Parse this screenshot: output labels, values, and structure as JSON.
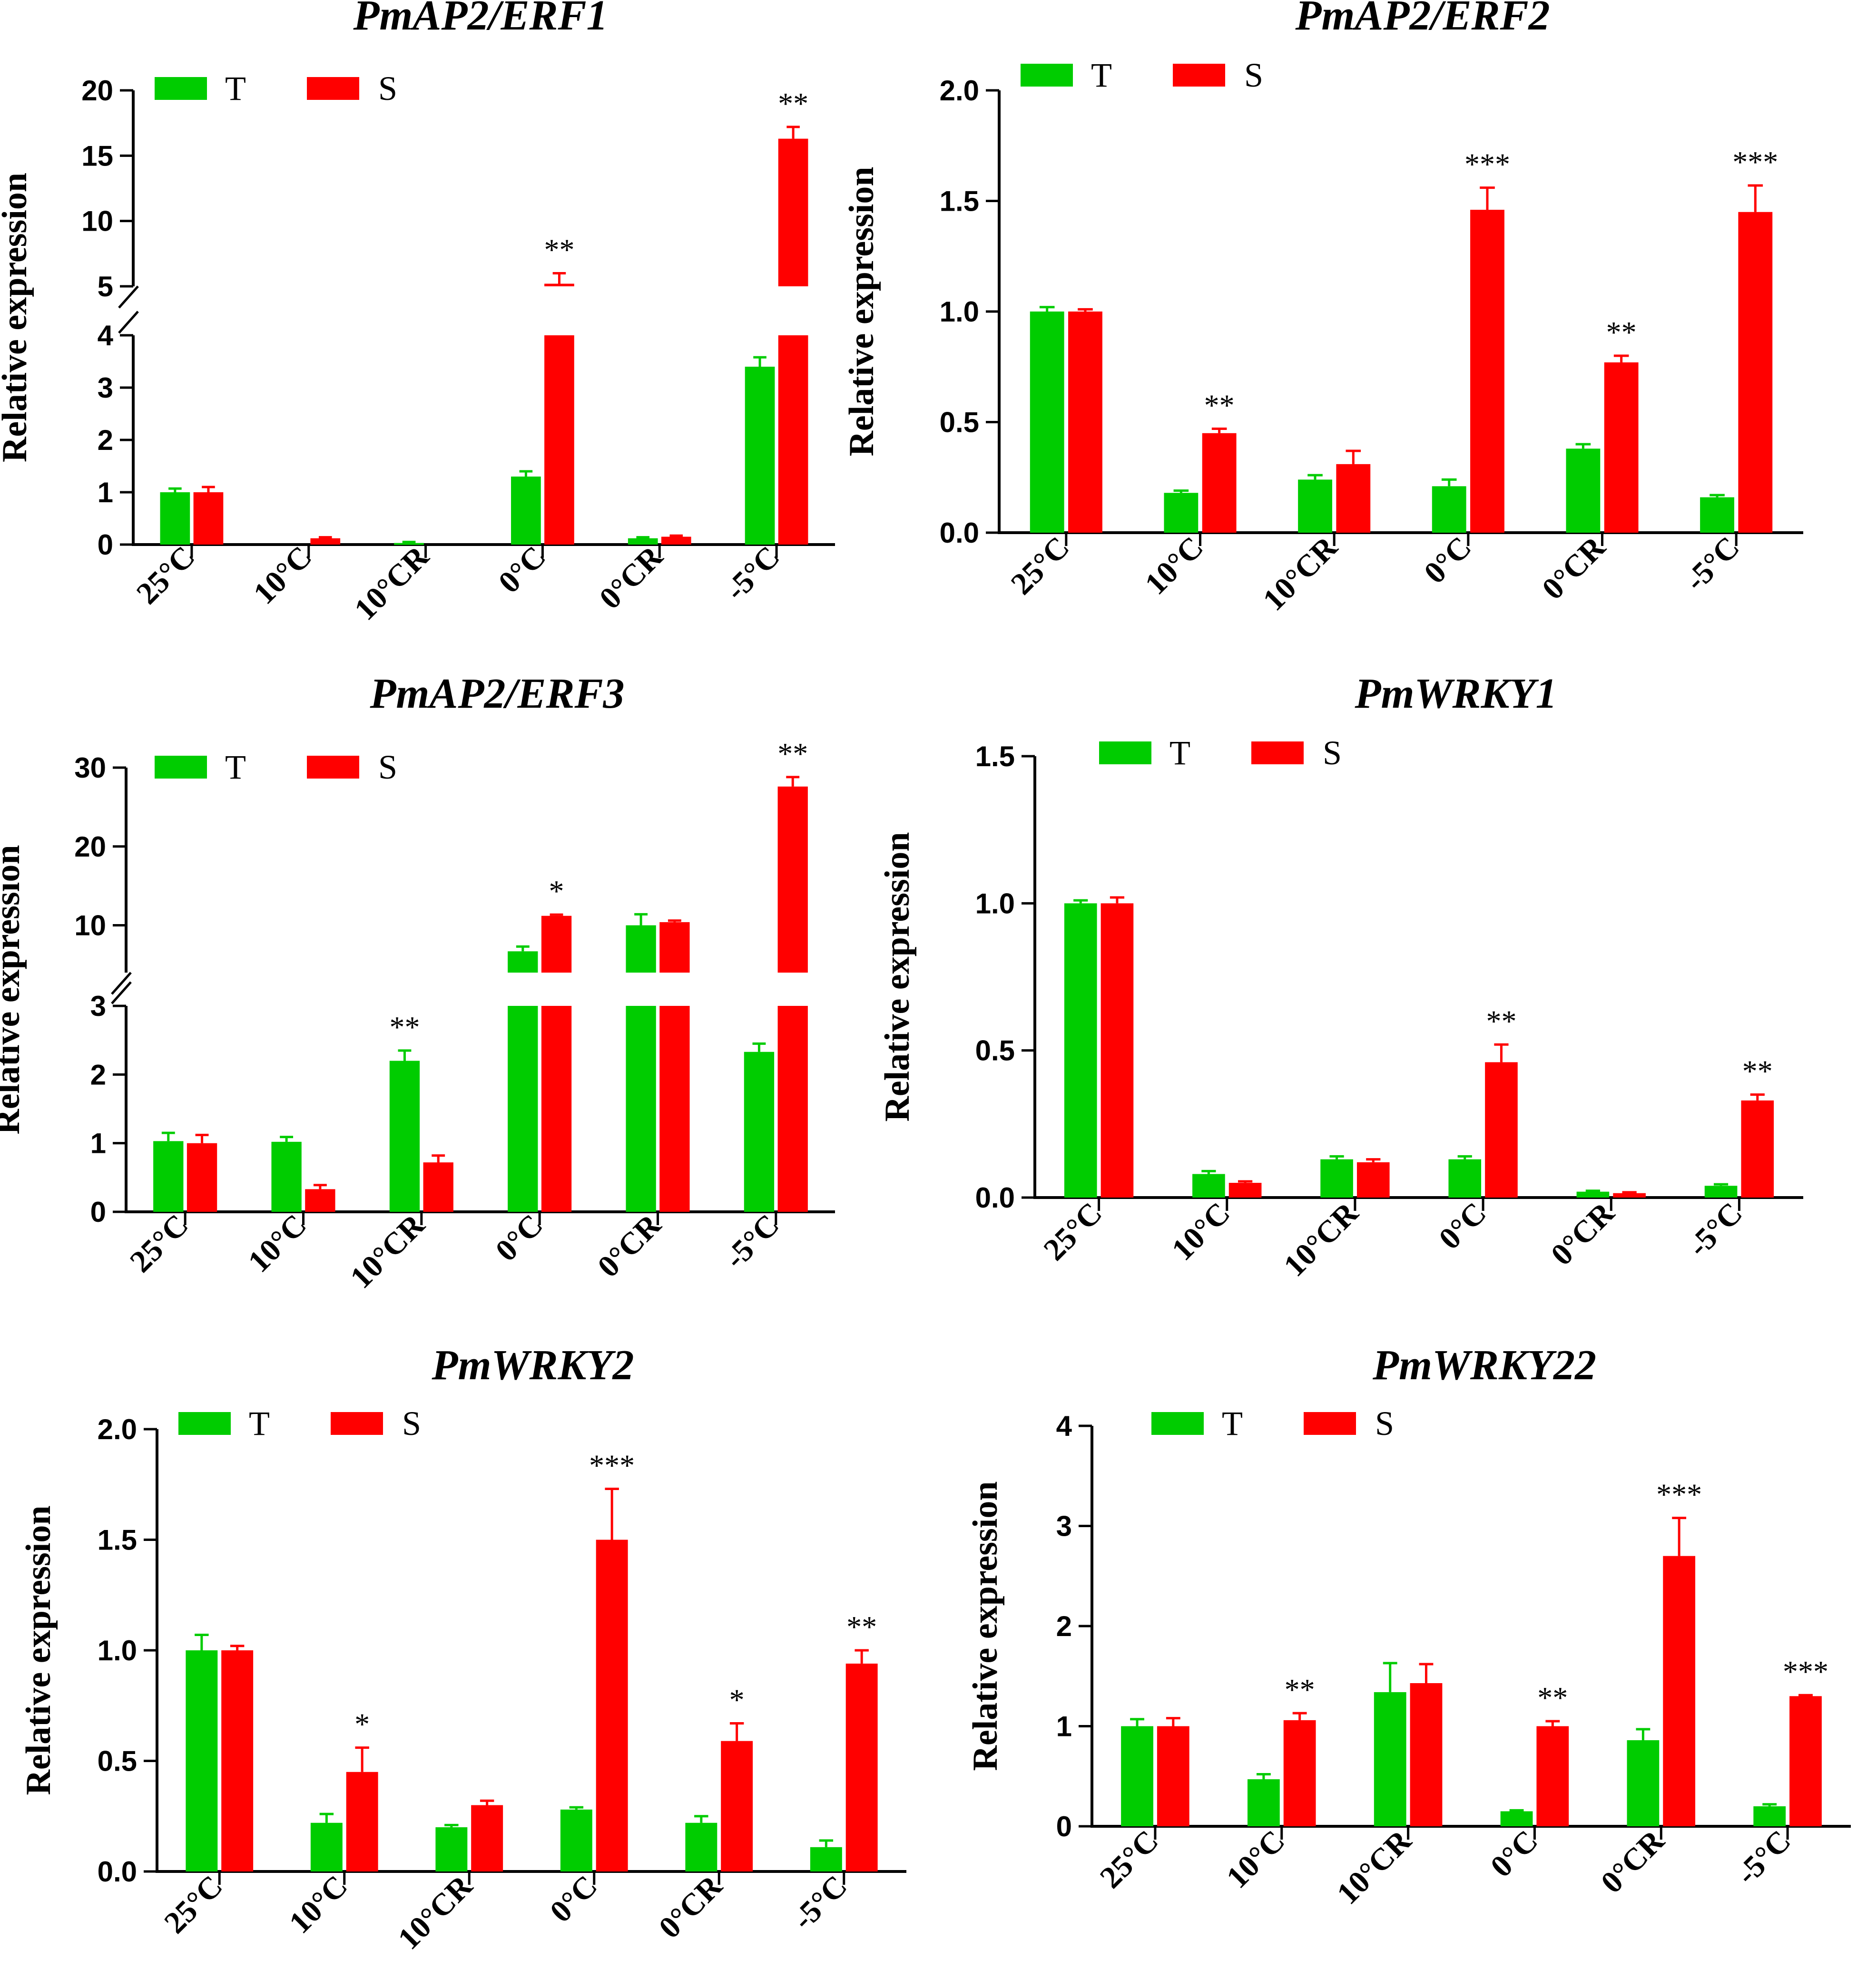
{
  "colors": {
    "T": "#00cc00",
    "S": "#ff0000",
    "axis": "#000000"
  },
  "chart_data": [
    {
      "type": "bar",
      "title": "PmAP2/ERF1",
      "ylabel": "Relative expression",
      "categories": [
        "25°C",
        "10°C",
        "10°CR",
        "0°C",
        "0°CR",
        "-5°C"
      ],
      "series": [
        {
          "name": "T",
          "values": [
            1.0,
            0.0,
            0.03,
            1.3,
            0.12,
            3.4
          ],
          "errors": [
            0.07,
            0.0,
            0.02,
            0.1,
            0.02,
            0.18
          ]
        },
        {
          "name": "S",
          "values": [
            1.0,
            0.12,
            0.0,
            5.2,
            0.15,
            16.3
          ],
          "errors": [
            0.1,
            0.02,
            0.0,
            0.8,
            0.02,
            0.9
          ]
        }
      ],
      "significance": [
        {
          "category": "0°C",
          "label": "**"
        },
        {
          "category": "-5°C",
          "label": "**"
        }
      ],
      "y_axis_break": {
        "lower_range": [
          0,
          4
        ],
        "upper_range": [
          5,
          20
        ]
      },
      "yticks": [
        "0",
        "1",
        "2",
        "3",
        "4",
        "5",
        "10",
        "15",
        "20"
      ],
      "legend": {
        "position": "top-left",
        "entries": [
          "T",
          "S"
        ]
      }
    },
    {
      "type": "bar",
      "title": "PmAP2/ERF2",
      "ylabel": "Relative expression",
      "categories": [
        "25°C",
        "10°C",
        "10°CR",
        "0°C",
        "0°CR",
        "-5°C"
      ],
      "series": [
        {
          "name": "T",
          "values": [
            1.0,
            0.18,
            0.24,
            0.21,
            0.38,
            0.16
          ],
          "errors": [
            0.02,
            0.01,
            0.02,
            0.03,
            0.02,
            0.01
          ]
        },
        {
          "name": "S",
          "values": [
            1.0,
            0.45,
            0.31,
            1.46,
            0.77,
            1.45
          ],
          "errors": [
            0.01,
            0.02,
            0.06,
            0.1,
            0.03,
            0.12
          ]
        }
      ],
      "significance": [
        {
          "category": "10°C",
          "label": "**"
        },
        {
          "category": "0°C",
          "label": "***"
        },
        {
          "category": "0°CR",
          "label": "**"
        },
        {
          "category": "-5°C",
          "label": "***"
        }
      ],
      "ylim": [
        0,
        2.0
      ],
      "yticks": [
        "0.0",
        "0.5",
        "1.0",
        "1.5",
        "2.0"
      ],
      "legend": {
        "position": "top-left",
        "entries": [
          "T",
          "S"
        ]
      }
    },
    {
      "type": "bar",
      "title": "PmAP2/ERF3",
      "ylabel": "Relative expression",
      "categories": [
        "25°C",
        "10°C",
        "10°CR",
        "0°C",
        "0°CR",
        "-5°C"
      ],
      "series": [
        {
          "name": "T",
          "values": [
            1.03,
            1.02,
            2.2,
            6.7,
            10.0,
            2.33
          ],
          "errors": [
            0.12,
            0.07,
            0.15,
            0.6,
            1.4,
            0.12
          ]
        },
        {
          "name": "S",
          "values": [
            1.0,
            0.33,
            0.72,
            11.2,
            10.4,
            27.6
          ],
          "errors": [
            0.12,
            0.06,
            0.1,
            0.15,
            0.2,
            1.2
          ]
        }
      ],
      "significance": [
        {
          "category": "10°CR",
          "label": "**"
        },
        {
          "category": "0°C",
          "label": "*"
        },
        {
          "category": "-5°C",
          "label": "**"
        }
      ],
      "y_axis_break": {
        "lower_range": [
          0,
          3
        ],
        "upper_range": [
          4,
          30
        ]
      },
      "yticks": [
        "0",
        "1",
        "2",
        "3",
        "10",
        "20",
        "30"
      ],
      "legend": {
        "position": "top-left",
        "entries": [
          "T",
          "S"
        ]
      }
    },
    {
      "type": "bar",
      "title": "PmWRKY1",
      "ylabel": "Relative expression",
      "categories": [
        "25°C",
        "10°C",
        "10°CR",
        "0°C",
        "0°CR",
        "-5°C"
      ],
      "series": [
        {
          "name": "T",
          "values": [
            1.0,
            0.08,
            0.13,
            0.13,
            0.02,
            0.04
          ],
          "errors": [
            0.01,
            0.01,
            0.01,
            0.01,
            0.003,
            0.005
          ]
        },
        {
          "name": "S",
          "values": [
            1.0,
            0.05,
            0.12,
            0.46,
            0.015,
            0.33
          ],
          "errors": [
            0.02,
            0.005,
            0.01,
            0.06,
            0.003,
            0.02
          ]
        }
      ],
      "significance": [
        {
          "category": "0°C",
          "label": "**"
        },
        {
          "category": "-5°C",
          "label": "**"
        }
      ],
      "ylim": [
        0,
        1.5
      ],
      "yticks": [
        "0.0",
        "0.5",
        "1.0",
        "1.5"
      ],
      "legend": {
        "position": "top-left",
        "entries": [
          "T",
          "S"
        ]
      }
    },
    {
      "type": "bar",
      "title": "PmWRKY2",
      "ylabel": "Relative expression",
      "categories": [
        "25°C",
        "10°C",
        "10°CR",
        "0°C",
        "0°CR",
        "-5°C"
      ],
      "series": [
        {
          "name": "T",
          "values": [
            1.0,
            0.22,
            0.2,
            0.28,
            0.22,
            0.11
          ],
          "errors": [
            0.07,
            0.04,
            0.01,
            0.01,
            0.03,
            0.03
          ]
        },
        {
          "name": "S",
          "values": [
            1.0,
            0.45,
            0.3,
            1.5,
            0.59,
            0.94
          ],
          "errors": [
            0.02,
            0.11,
            0.02,
            0.23,
            0.08,
            0.06
          ]
        }
      ],
      "significance": [
        {
          "category": "10°C",
          "label": "*"
        },
        {
          "category": "0°C",
          "label": "***"
        },
        {
          "category": "0°CR",
          "label": "*"
        },
        {
          "category": "-5°C",
          "label": "**"
        }
      ],
      "ylim": [
        0,
        2.0
      ],
      "yticks": [
        "0.0",
        "0.5",
        "1.0",
        "1.5",
        "2.0"
      ],
      "legend": {
        "position": "top-left",
        "entries": [
          "T",
          "S"
        ]
      }
    },
    {
      "type": "bar",
      "title": "PmWRKY22",
      "ylabel": "Relative expression",
      "categories": [
        "25°C",
        "10°C",
        "10°CR",
        "0°C",
        "0°CR",
        "-5°C"
      ],
      "series": [
        {
          "name": "T",
          "values": [
            1.0,
            0.47,
            1.34,
            0.15,
            0.86,
            0.2
          ],
          "errors": [
            0.07,
            0.05,
            0.29,
            0.01,
            0.11,
            0.02
          ]
        },
        {
          "name": "S",
          "values": [
            1.0,
            1.06,
            1.43,
            1.0,
            2.7,
            1.3
          ],
          "errors": [
            0.08,
            0.07,
            0.19,
            0.05,
            0.38,
            0.01
          ]
        }
      ],
      "significance": [
        {
          "category": "10°C",
          "label": "**"
        },
        {
          "category": "0°C",
          "label": "**"
        },
        {
          "category": "0°CR",
          "label": "***"
        },
        {
          "category": "-5°C",
          "label": "***"
        }
      ],
      "ylim": [
        0,
        4
      ],
      "yticks": [
        "0",
        "1",
        "2",
        "3",
        "4"
      ],
      "legend": {
        "position": "top-left",
        "entries": [
          "T",
          "S"
        ]
      }
    }
  ]
}
